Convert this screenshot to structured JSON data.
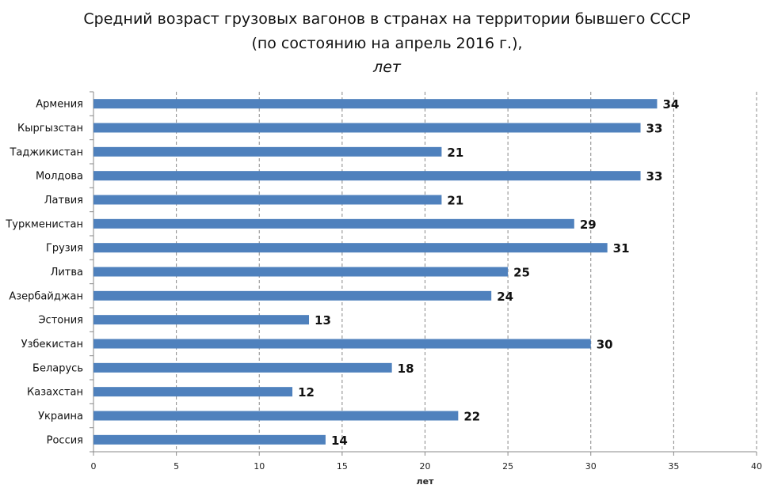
{
  "chart_data": {
    "type": "bar",
    "orientation": "horizontal",
    "title": "Средний возраст грузовых вагонов в странах  на территории бывшего СССР",
    "subtitle": "(по состоянию на апрель 2016 г.),",
    "unit_line": "лет",
    "xlabel": "лет",
    "ylabel": "",
    "xlim": [
      0,
      40
    ],
    "xticks": [
      0,
      5,
      10,
      15,
      20,
      25,
      30,
      35,
      40
    ],
    "grid": "vertical dashed",
    "categories": [
      "Армения",
      "Кыргызстан",
      "Таджикистан",
      "Молдова",
      "Латвия",
      "Туркменистан",
      "Грузия",
      "Литва",
      "Азербайджан",
      "Эстония",
      "Узбекистан",
      "Беларусь",
      "Казахстан",
      "Украина",
      "Россия"
    ],
    "values": [
      34,
      33,
      21,
      33,
      21,
      29,
      31,
      25,
      24,
      13,
      30,
      18,
      12,
      22,
      14
    ],
    "bar_color": "#4f81bd"
  }
}
